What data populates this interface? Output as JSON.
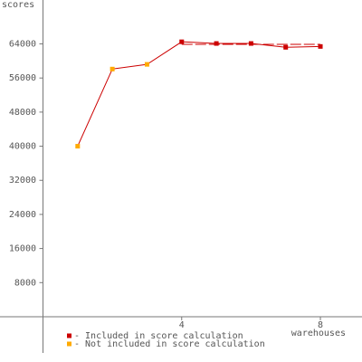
{
  "chart_data": {
    "type": "line",
    "y_label": "scores",
    "x_label": "warehouses",
    "x": [
      1,
      2,
      3,
      4,
      5,
      6,
      7,
      8
    ],
    "values": [
      40000,
      58100,
      59200,
      64500,
      64100,
      64100,
      63200,
      63400
    ],
    "point_colors": [
      "#ffaa00",
      "#ffaa00",
      "#ffaa00",
      "#cc0000",
      "#cc0000",
      "#cc0000",
      "#cc0000",
      "#cc0000"
    ],
    "line_color": "#cc0000",
    "score_level": 63900,
    "score_range": [
      4,
      8
    ],
    "xlim": [
      0,
      9.2
    ],
    "xticks": [
      4,
      8
    ],
    "ylim": [
      -8500,
      74300
    ],
    "yticks": [
      8000,
      16000,
      24000,
      32000,
      40000,
      48000,
      56000,
      64000
    ],
    "legend": [
      {
        "label": "- Included in score calculation",
        "color": "#cc0000"
      },
      {
        "label": "- Not included in score calculation",
        "color": "#ffaa00"
      }
    ]
  }
}
